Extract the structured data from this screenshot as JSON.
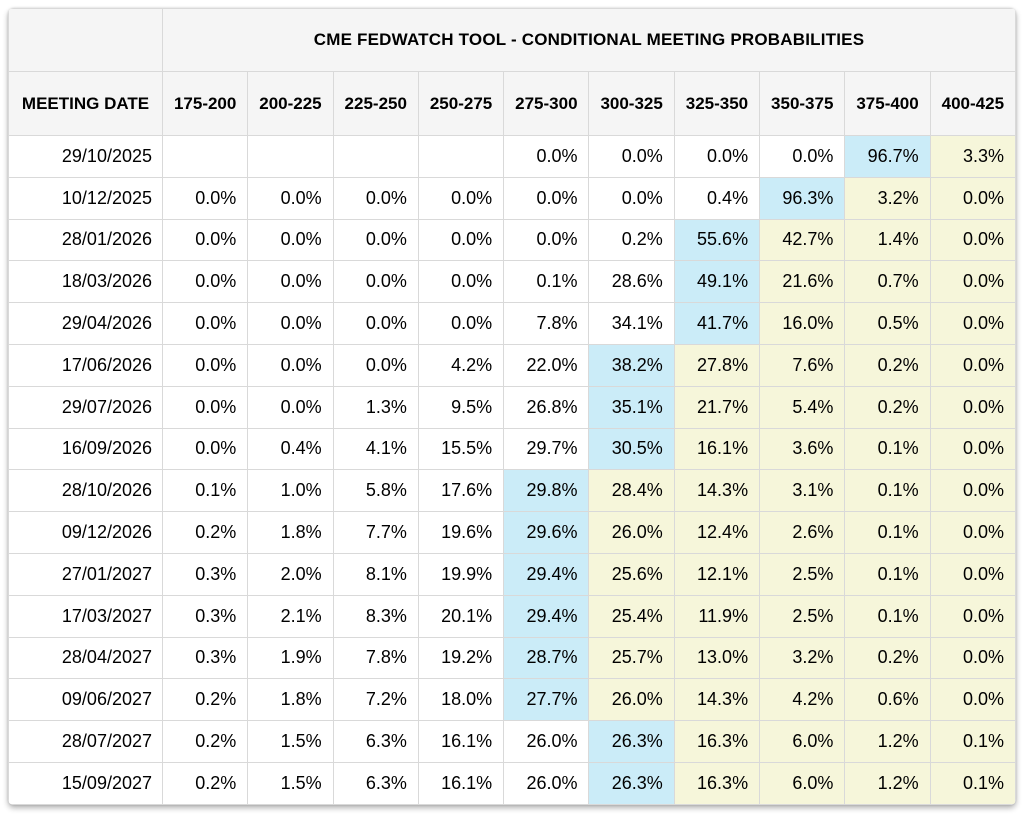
{
  "header": {
    "title": "CME FEDWATCH TOOL - CONDITIONAL MEETING PROBABILITIES"
  },
  "table": {
    "corner_label": "",
    "date_header": "MEETING DATE"
  },
  "colors": {
    "highlight_blue": "#cbecf8",
    "highlight_yellow": "#f6f6da",
    "header_bg": "#f5f5f5",
    "border": "#d9d9d9",
    "text": "#000000"
  },
  "chart_data": {
    "type": "table",
    "title": "CME FEDWATCH TOOL - CONDITIONAL MEETING PROBABILITIES",
    "row_header": "MEETING DATE",
    "unit": "%",
    "categories": [
      "175-200",
      "200-225",
      "225-250",
      "250-275",
      "275-300",
      "300-325",
      "325-350",
      "350-375",
      "375-400",
      "400-425"
    ],
    "highlight_codes": {
      "b": "blue",
      "y": "yellow",
      "": "none"
    },
    "rows": [
      {
        "date": "29/10/2025",
        "values": [
          null,
          null,
          null,
          null,
          0.0,
          0.0,
          0.0,
          0.0,
          96.7,
          3.3
        ],
        "styles": [
          "",
          "",
          "",
          "",
          "",
          "",
          "",
          "",
          "b",
          "y"
        ]
      },
      {
        "date": "10/12/2025",
        "values": [
          0.0,
          0.0,
          0.0,
          0.0,
          0.0,
          0.0,
          0.4,
          96.3,
          3.2,
          0.0
        ],
        "styles": [
          "",
          "",
          "",
          "",
          "",
          "",
          "",
          "b",
          "y",
          "y"
        ]
      },
      {
        "date": "28/01/2026",
        "values": [
          0.0,
          0.0,
          0.0,
          0.0,
          0.0,
          0.2,
          55.6,
          42.7,
          1.4,
          0.0
        ],
        "styles": [
          "",
          "",
          "",
          "",
          "",
          "",
          "b",
          "y",
          "y",
          "y"
        ]
      },
      {
        "date": "18/03/2026",
        "values": [
          0.0,
          0.0,
          0.0,
          0.0,
          0.1,
          28.6,
          49.1,
          21.6,
          0.7,
          0.0
        ],
        "styles": [
          "",
          "",
          "",
          "",
          "",
          "",
          "b",
          "y",
          "y",
          "y"
        ]
      },
      {
        "date": "29/04/2026",
        "values": [
          0.0,
          0.0,
          0.0,
          0.0,
          7.8,
          34.1,
          41.7,
          16.0,
          0.5,
          0.0
        ],
        "styles": [
          "",
          "",
          "",
          "",
          "",
          "",
          "b",
          "y",
          "y",
          "y"
        ]
      },
      {
        "date": "17/06/2026",
        "values": [
          0.0,
          0.0,
          0.0,
          4.2,
          22.0,
          38.2,
          27.8,
          7.6,
          0.2,
          0.0
        ],
        "styles": [
          "",
          "",
          "",
          "",
          "",
          "b",
          "y",
          "y",
          "y",
          "y"
        ]
      },
      {
        "date": "29/07/2026",
        "values": [
          0.0,
          0.0,
          1.3,
          9.5,
          26.8,
          35.1,
          21.7,
          5.4,
          0.2,
          0.0
        ],
        "styles": [
          "",
          "",
          "",
          "",
          "",
          "b",
          "y",
          "y",
          "y",
          "y"
        ]
      },
      {
        "date": "16/09/2026",
        "values": [
          0.0,
          0.4,
          4.1,
          15.5,
          29.7,
          30.5,
          16.1,
          3.6,
          0.1,
          0.0
        ],
        "styles": [
          "",
          "",
          "",
          "",
          "",
          "b",
          "y",
          "y",
          "y",
          "y"
        ]
      },
      {
        "date": "28/10/2026",
        "values": [
          0.1,
          1.0,
          5.8,
          17.6,
          29.8,
          28.4,
          14.3,
          3.1,
          0.1,
          0.0
        ],
        "styles": [
          "",
          "",
          "",
          "",
          "b",
          "y",
          "y",
          "y",
          "y",
          "y"
        ]
      },
      {
        "date": "09/12/2026",
        "values": [
          0.2,
          1.8,
          7.7,
          19.6,
          29.6,
          26.0,
          12.4,
          2.6,
          0.1,
          0.0
        ],
        "styles": [
          "",
          "",
          "",
          "",
          "b",
          "y",
          "y",
          "y",
          "y",
          "y"
        ]
      },
      {
        "date": "27/01/2027",
        "values": [
          0.3,
          2.0,
          8.1,
          19.9,
          29.4,
          25.6,
          12.1,
          2.5,
          0.1,
          0.0
        ],
        "styles": [
          "",
          "",
          "",
          "",
          "b",
          "y",
          "y",
          "y",
          "y",
          "y"
        ]
      },
      {
        "date": "17/03/2027",
        "values": [
          0.3,
          2.1,
          8.3,
          20.1,
          29.4,
          25.4,
          11.9,
          2.5,
          0.1,
          0.0
        ],
        "styles": [
          "",
          "",
          "",
          "",
          "b",
          "y",
          "y",
          "y",
          "y",
          "y"
        ]
      },
      {
        "date": "28/04/2027",
        "values": [
          0.3,
          1.9,
          7.8,
          19.2,
          28.7,
          25.7,
          13.0,
          3.2,
          0.2,
          0.0
        ],
        "styles": [
          "",
          "",
          "",
          "",
          "b",
          "y",
          "y",
          "y",
          "y",
          "y"
        ]
      },
      {
        "date": "09/06/2027",
        "values": [
          0.2,
          1.8,
          7.2,
          18.0,
          27.7,
          26.0,
          14.3,
          4.2,
          0.6,
          0.0
        ],
        "styles": [
          "",
          "",
          "",
          "",
          "b",
          "y",
          "y",
          "y",
          "y",
          "y"
        ]
      },
      {
        "date": "28/07/2027",
        "values": [
          0.2,
          1.5,
          6.3,
          16.1,
          26.0,
          26.3,
          16.3,
          6.0,
          1.2,
          0.1
        ],
        "styles": [
          "",
          "",
          "",
          "",
          "",
          "b",
          "y",
          "y",
          "y",
          "y"
        ]
      },
      {
        "date": "15/09/2027",
        "values": [
          0.2,
          1.5,
          6.3,
          16.1,
          26.0,
          26.3,
          16.3,
          6.0,
          1.2,
          0.1
        ],
        "styles": [
          "",
          "",
          "",
          "",
          "",
          "b",
          "y",
          "y",
          "y",
          "y"
        ]
      }
    ]
  }
}
